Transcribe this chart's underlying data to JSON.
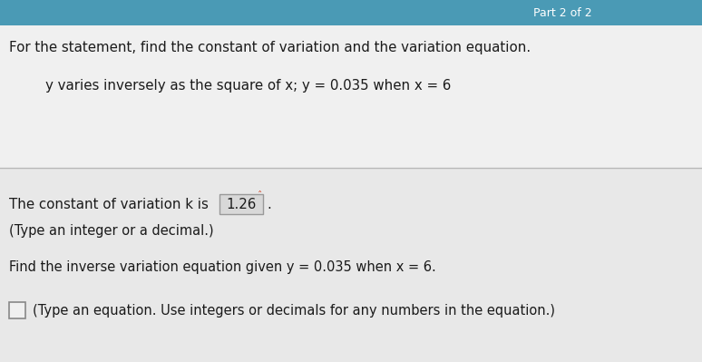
{
  "bg_top": "#dcdcdc",
  "bg_bottom": "#e0e0e0",
  "header_bg": "#4a9ab5",
  "header_text": "Part 2 of 2",
  "header_text_color": "#ffffff",
  "line1": "For the statement, find the constant of variation and the variation equation.",
  "line2": "y varies inversely as the square of x; y = 0.035 when x = 6",
  "line3a": "The constant of variation k is ",
  "k_value": "1.26",
  "line4": "(Type an integer or a decimal.)",
  "line5": "Find the inverse variation equation given y = 0.035 when x = 6.",
  "line6": "(Type an equation. Use integers or decimals for any numbers in the equation.)",
  "text_color": "#1a1a1a",
  "box_border": "#999999",
  "box_fill": "#d8d8d8",
  "divider_color": "#b8b8b8",
  "cursor_color": "#cc2200"
}
